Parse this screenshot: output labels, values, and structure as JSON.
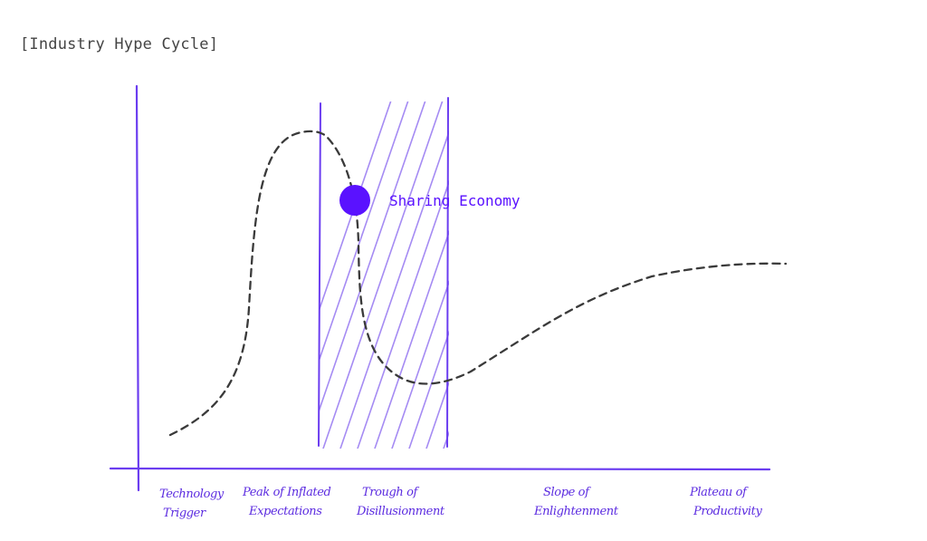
{
  "title": "[Industry Hype Cycle]",
  "colors": {
    "axis": "#6b3df0",
    "hatch": "#a58bf3",
    "curve": "#3a3a3a",
    "marker": "#5a12ff",
    "marker_label": "#5a12ff",
    "title": "#444444"
  },
  "phases": [
    {
      "line1": "Technology",
      "line2": "Trigger"
    },
    {
      "line1": "Peak of Inflated",
      "line2": "Expectations"
    },
    {
      "line1": "Trough of",
      "line2": "Disillusionment"
    },
    {
      "line1": "Slope of",
      "line2": "Enlightenment"
    },
    {
      "line1": "Plateau of",
      "line2": "Productivity"
    }
  ],
  "marker": {
    "label": "Sharing Economy",
    "phase": "Trough of Disillusionment"
  }
}
